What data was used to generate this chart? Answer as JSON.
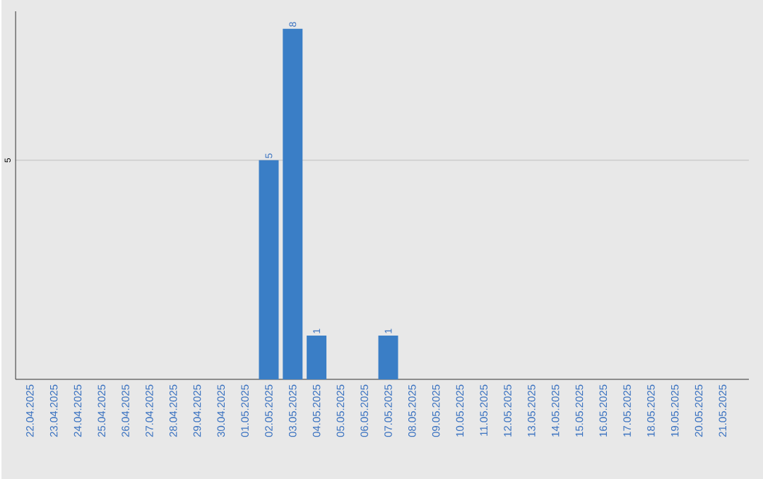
{
  "chart_data": {
    "type": "bar",
    "categories": [
      "22.04.2025",
      "23.04.2025",
      "24.04.2025",
      "25.04.2025",
      "26.04.2025",
      "27.04.2025",
      "28.04.2025",
      "29.04.2025",
      "30.04.2025",
      "01.05.2025",
      "02.05.2025",
      "03.05.2025",
      "04.05.2025",
      "05.05.2025",
      "06.05.2025",
      "07.05.2025",
      "08.05.2025",
      "09.05.2025",
      "10.05.2025",
      "11.05.2025",
      "12.05.2025",
      "13.05.2025",
      "14.05.2025",
      "15.05.2025",
      "16.05.2025",
      "17.05.2025",
      "18.05.2025",
      "19.05.2025",
      "20.05.2025",
      "21.05.2025"
    ],
    "values": [
      0,
      0,
      0,
      0,
      0,
      0,
      0,
      0,
      0,
      0,
      5,
      8,
      1,
      0,
      0,
      1,
      0,
      0,
      0,
      0,
      0,
      0,
      0,
      0,
      0,
      0,
      0,
      0,
      0,
      0
    ],
    "value_labels": [
      null,
      null,
      null,
      null,
      null,
      null,
      null,
      null,
      null,
      null,
      "5",
      "8",
      "1",
      null,
      null,
      "1",
      null,
      null,
      null,
      null,
      null,
      null,
      null,
      null,
      null,
      null,
      null,
      null,
      null,
      null
    ],
    "color": "#3a7ec6",
    "ylim": [
      0,
      8.4
    ],
    "yticks": [
      5
    ],
    "grid": "y"
  }
}
